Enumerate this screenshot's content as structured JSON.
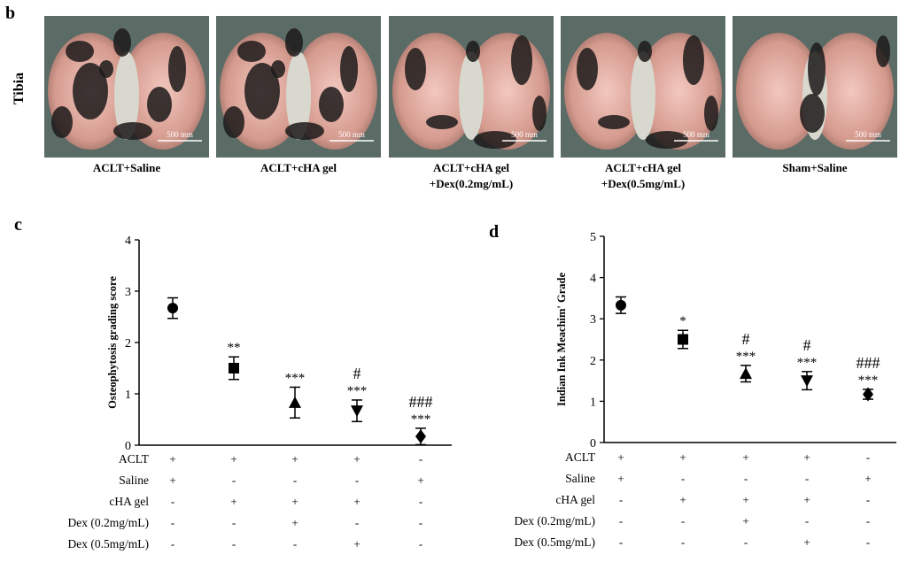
{
  "panel_b": {
    "letter": "b",
    "row_label": "Tibia",
    "scale_label": "500 mm",
    "photos": [
      {
        "caption": [
          "ACLT+Saline"
        ],
        "ink": "heavy"
      },
      {
        "caption": [
          "ACLT+cHA gel"
        ],
        "ink": "heavy"
      },
      {
        "caption": [
          "ACLT+cHA gel",
          "+Dex(0.2mg/mL)"
        ],
        "ink": "medium"
      },
      {
        "caption": [
          "ACLT+cHA gel",
          "+Dex(0.5mg/mL)"
        ],
        "ink": "medium"
      },
      {
        "caption": [
          "Sham+Saline"
        ],
        "ink": "light"
      }
    ]
  },
  "chart_data": [
    {
      "panel": "c",
      "type": "scatter",
      "ylabel": "Osteophytosis grading score",
      "ylim": [
        0,
        4
      ],
      "yticks": [
        "0",
        "1",
        "2",
        "3",
        "4"
      ],
      "points": [
        {
          "marker": "circle",
          "value": 2.67,
          "err": 0.2,
          "annotations": []
        },
        {
          "marker": "square",
          "value": 1.5,
          "err": 0.22,
          "annotations": [
            "**"
          ]
        },
        {
          "marker": "triangle-up",
          "value": 0.83,
          "err": 0.3,
          "annotations": [
            "***"
          ]
        },
        {
          "marker": "triangle-down",
          "value": 0.67,
          "err": 0.21,
          "annotations": [
            "***",
            "#"
          ]
        },
        {
          "marker": "diamond",
          "value": 0.17,
          "err": 0.16,
          "annotations": [
            "***",
            "###"
          ]
        }
      ],
      "table": {
        "rows": [
          {
            "label": "ACLT",
            "values": [
              "+",
              "+",
              "+",
              "+",
              "-"
            ]
          },
          {
            "label": "Saline",
            "values": [
              "+",
              "-",
              "-",
              "-",
              "+"
            ]
          },
          {
            "label": "cHA gel",
            "values": [
              "-",
              "+",
              "+",
              "+",
              "-"
            ]
          },
          {
            "label": "Dex (0.2mg/mL)",
            "values": [
              "-",
              "-",
              "+",
              "-",
              "-"
            ]
          },
          {
            "label": "Dex (0.5mg/mL)",
            "values": [
              "-",
              "-",
              "-",
              "+",
              "-"
            ]
          }
        ]
      }
    },
    {
      "panel": "d",
      "type": "scatter",
      "ylabel": "Indian Ink Meachim' Grade",
      "ylim": [
        0,
        5
      ],
      "yticks": [
        "0",
        "1",
        "2",
        "3",
        "4",
        "5"
      ],
      "points": [
        {
          "marker": "circle",
          "value": 3.33,
          "err": 0.2,
          "annotations": []
        },
        {
          "marker": "square",
          "value": 2.5,
          "err": 0.22,
          "annotations": [
            "*"
          ]
        },
        {
          "marker": "triangle-up",
          "value": 1.67,
          "err": 0.2,
          "annotations": [
            "***",
            "#"
          ]
        },
        {
          "marker": "triangle-down",
          "value": 1.5,
          "err": 0.22,
          "annotations": [
            "***",
            "#"
          ]
        },
        {
          "marker": "diamond",
          "value": 1.17,
          "err": 0.12,
          "annotations": [
            "***",
            "###"
          ]
        }
      ],
      "table": {
        "rows": [
          {
            "label": "ACLT",
            "values": [
              "+",
              "+",
              "+",
              "+",
              "-"
            ]
          },
          {
            "label": "Saline",
            "values": [
              "+",
              "-",
              "-",
              "-",
              "+"
            ]
          },
          {
            "label": "cHA gel",
            "values": [
              "-",
              "+",
              "+",
              "+",
              "-"
            ]
          },
          {
            "label": "Dex (0.2mg/mL)",
            "values": [
              "-",
              "-",
              "+",
              "-",
              "-"
            ]
          },
          {
            "label": "Dex (0.5mg/mL)",
            "values": [
              "-",
              "-",
              "-",
              "+",
              "-"
            ]
          }
        ]
      }
    }
  ]
}
